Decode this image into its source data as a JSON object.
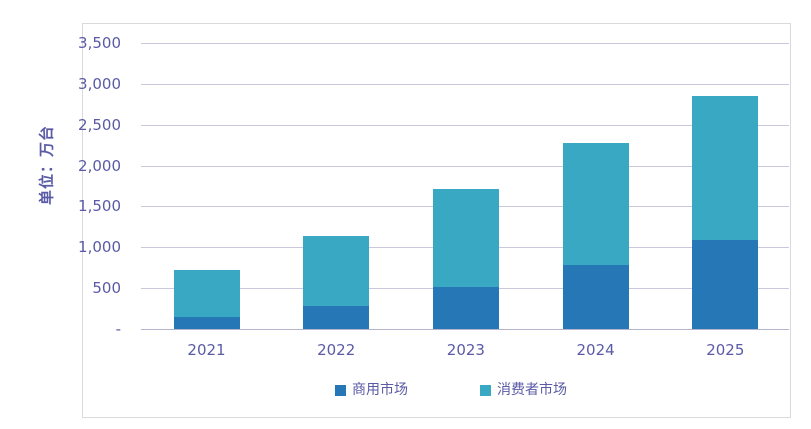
{
  "figure": {
    "y_axis_title": "单位：万台",
    "y_ticks": [
      "3,500",
      "3,000",
      "2,500",
      "2,000",
      "1,500",
      "1,000",
      "500",
      "-"
    ]
  },
  "chart_data": {
    "type": "bar",
    "stacked": true,
    "title": "",
    "xlabel": "",
    "ylabel": "单位：万台",
    "categories": [
      "2021",
      "2022",
      "2023",
      "2024",
      "2025"
    ],
    "series": [
      {
        "name": "商用市场",
        "color": "#2677b5",
        "values": [
          150,
          280,
          520,
          780,
          1090
        ]
      },
      {
        "name": "消费者市场",
        "color": "#39a9c3",
        "values": [
          570,
          860,
          1190,
          1500,
          1760
        ]
      }
    ],
    "totals": [
      720,
      1140,
      1710,
      2280,
      2850
    ],
    "ylim": [
      0,
      3500
    ],
    "y_tick_step": 500,
    "grid": true,
    "legend_position": "bottom"
  },
  "colors": {
    "axis_text": "#5a5aa5",
    "gridline": "#c9c9de",
    "baseline": "#b4b4cc",
    "frame_border": "#d9d9de",
    "commercial_blue": "#2677b5",
    "consumer_teal": "#39a9c3",
    "background": "#ffffff"
  },
  "legend": [
    {
      "label": "商用市场"
    },
    {
      "label": "消费者市场"
    }
  ]
}
